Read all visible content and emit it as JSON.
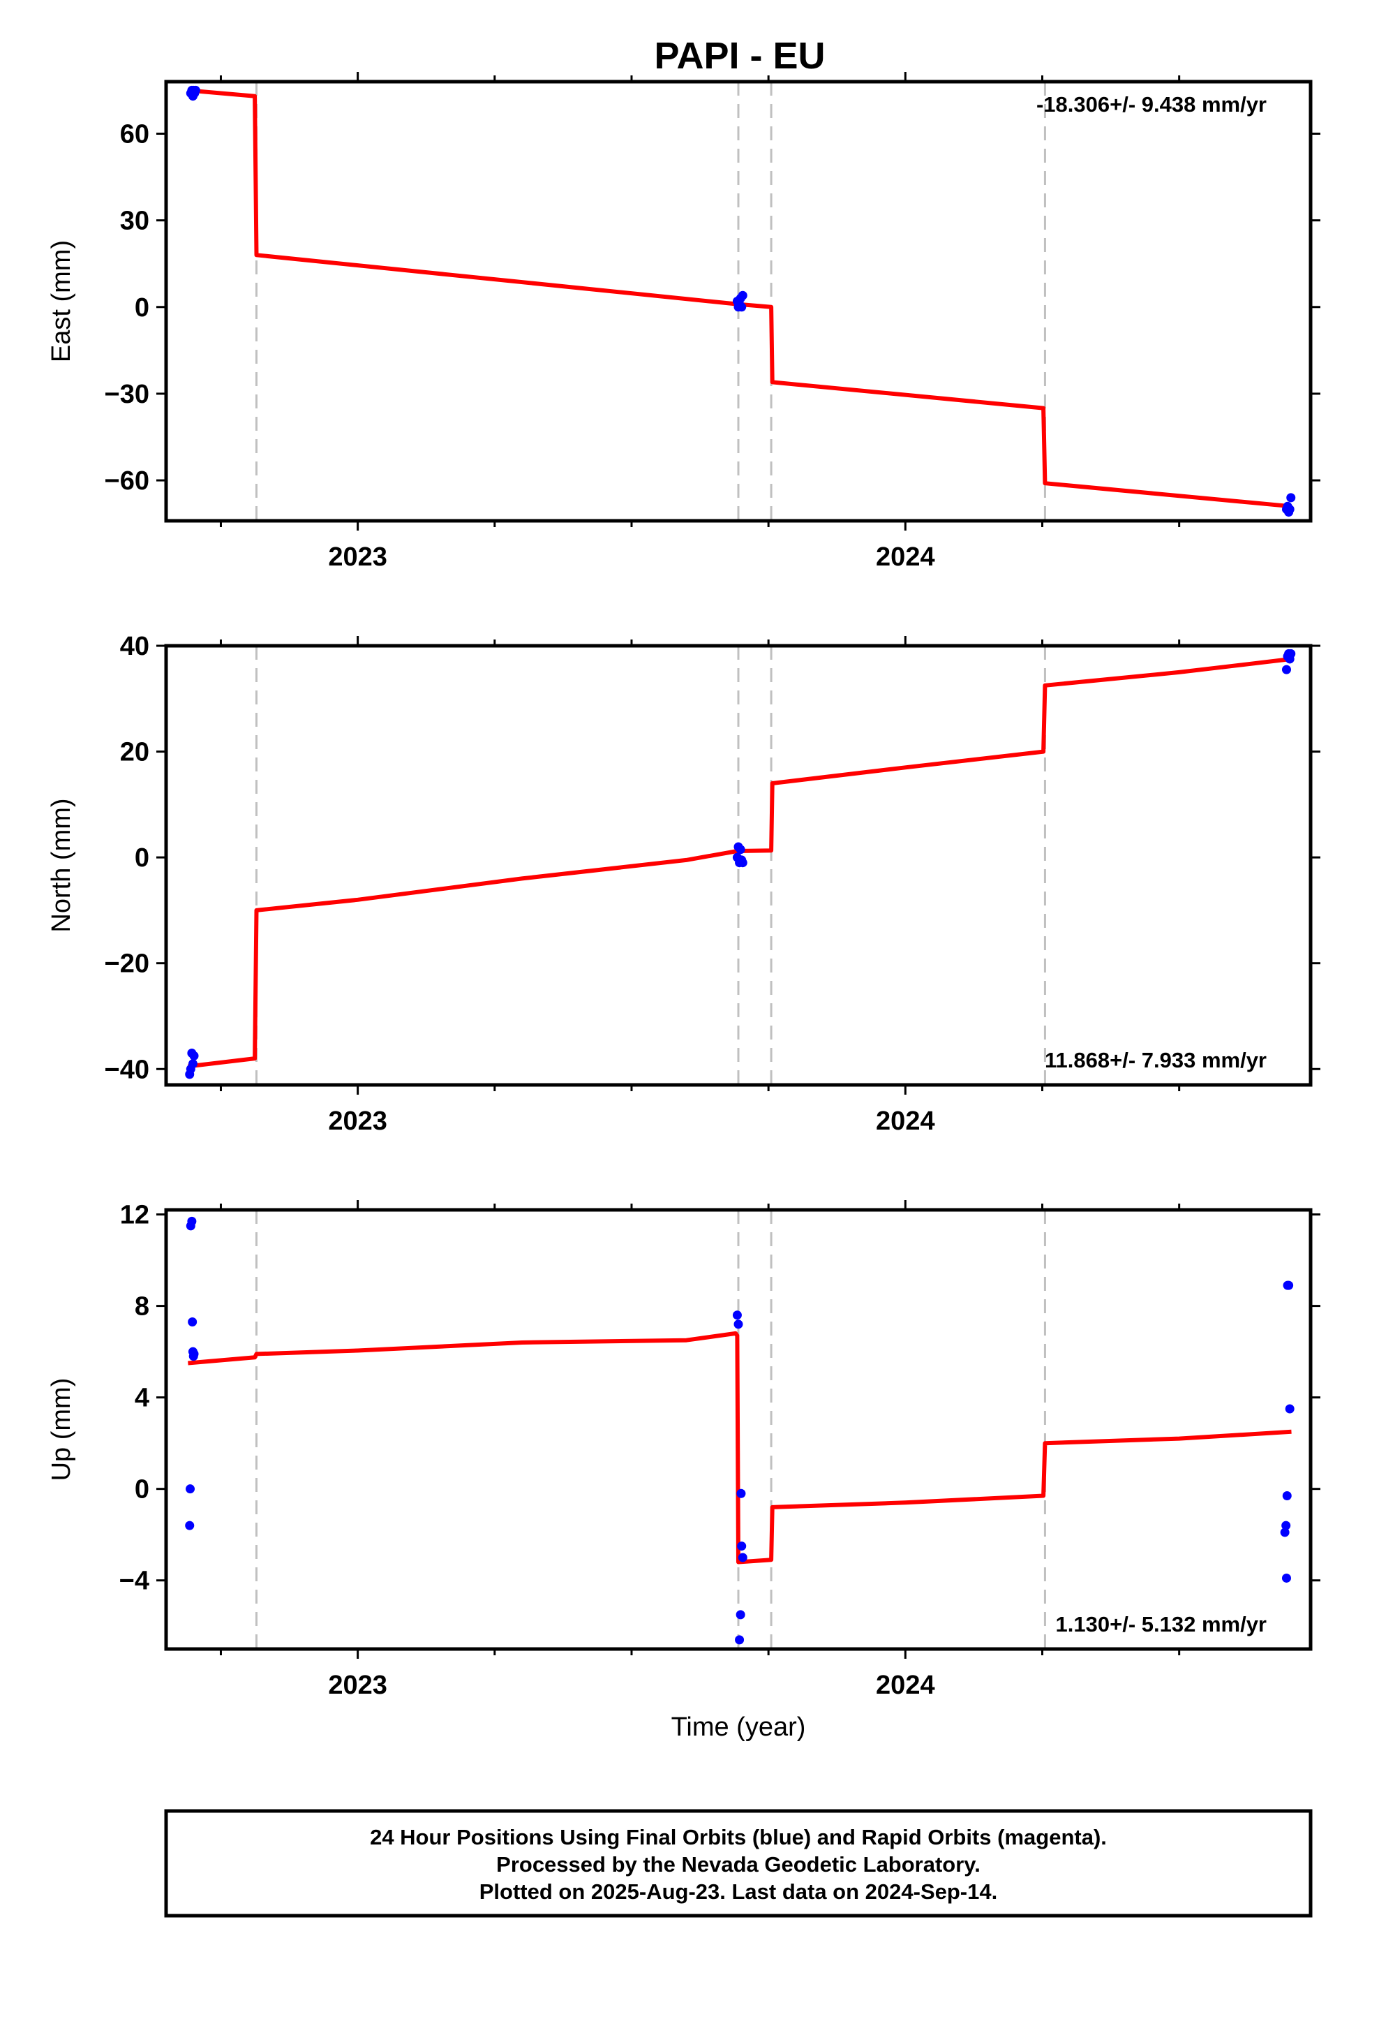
{
  "title": "PAPI - EU",
  "footer": {
    "line1": "24 Hour Positions Using Final Orbits (blue) and Rapid Orbits (magenta).",
    "line2": "Processed by the Nevada Geodetic Laboratory.",
    "line3": "Plotted on 2025-Aug-23. Last data on 2024-Sep-14."
  },
  "colors": {
    "final_orbits": "#0000ff",
    "model": "#ff0000",
    "breaks": "#c0c0c0",
    "frame": "#000000"
  },
  "chart_data": [
    {
      "type": "scatter",
      "component": "east",
      "ylabel": "East (mm)",
      "xlabel": "",
      "xlim": [
        2022.65,
        2024.74
      ],
      "ylim": [
        -74,
        78
      ],
      "xticks": [
        2023,
        2024
      ],
      "xtick_labels": [
        "2023",
        "2024"
      ],
      "yticks": [
        60,
        30,
        0,
        -30,
        -60
      ],
      "ytick_labels": [
        "60",
        "30",
        "0",
        "−30",
        "−60"
      ],
      "rate_text": "-18.306+/- 9.438 mm/yr",
      "rate_position": "top-right",
      "breaks": [
        2022.815,
        2023.695,
        2023.755,
        2024.255
      ],
      "points": {
        "x": [
          2022.695,
          2022.697,
          2022.699,
          2022.7,
          2022.702,
          2022.704,
          2023.693,
          2023.695,
          2023.697,
          2023.699,
          2023.701,
          2023.703,
          2024.696,
          2024.698,
          2024.7,
          2024.702,
          2024.704
        ],
        "y": [
          74,
          75,
          73,
          75,
          74,
          75,
          2,
          0,
          1,
          3,
          0,
          4,
          -70,
          -69,
          -71,
          -70,
          -66
        ]
      },
      "model": {
        "x": [
          2022.69,
          2022.812,
          2022.815,
          2023.693,
          2023.755,
          2023.757,
          2024.252,
          2024.255,
          2024.705
        ],
        "y": [
          75,
          73,
          18,
          1,
          0,
          -26,
          -35,
          -61,
          -69
        ]
      }
    },
    {
      "type": "scatter",
      "component": "north",
      "ylabel": "North (mm)",
      "xlabel": "",
      "xlim": [
        2022.65,
        2024.74
      ],
      "ylim": [
        -43,
        40
      ],
      "xticks": [
        2023,
        2024
      ],
      "xtick_labels": [
        "2023",
        "2024"
      ],
      "yticks": [
        40,
        20,
        0,
        -20,
        -40
      ],
      "ytick_labels": [
        "40",
        "20",
        "0",
        "−20",
        "−40"
      ],
      "rate_text": "11.868+/- 7.933 mm/yr",
      "rate_position": "bottom-right",
      "breaks": [
        2022.815,
        2023.695,
        2023.755,
        2024.255
      ],
      "points": {
        "x": [
          2022.693,
          2022.695,
          2022.697,
          2022.699,
          2022.701,
          2023.693,
          2023.695,
          2023.697,
          2023.699,
          2023.701,
          2023.703,
          2024.696,
          2024.698,
          2024.7,
          2024.702,
          2024.704
        ],
        "y": [
          -41,
          -40,
          -37,
          -39,
          -37.5,
          0,
          2,
          -1,
          1.5,
          -0.5,
          -1,
          35.5,
          38,
          38.5,
          37.5,
          38.5
        ]
      },
      "model": {
        "x": [
          2022.69,
          2022.812,
          2022.815,
          2023.0,
          2023.3,
          2023.6,
          2023.693,
          2023.755,
          2023.757,
          2024.0,
          2024.252,
          2024.255,
          2024.5,
          2024.705
        ],
        "y": [
          -39.5,
          -38,
          -10,
          -8,
          -4,
          -0.5,
          1.2,
          1.3,
          14,
          17,
          20,
          32.5,
          35,
          37.5
        ]
      }
    },
    {
      "type": "scatter",
      "component": "up",
      "ylabel": "Up (mm)",
      "xlabel": "Time (year)",
      "xlim": [
        2022.65,
        2024.74
      ],
      "ylim": [
        -7,
        12.2
      ],
      "xticks": [
        2023,
        2024
      ],
      "xtick_labels": [
        "2023",
        "2024"
      ],
      "yticks": [
        12,
        8,
        4,
        0,
        -4
      ],
      "ytick_labels": [
        "12",
        "8",
        "4",
        "0",
        "−4"
      ],
      "rate_text": "1.130+/- 5.132 mm/yr",
      "rate_position": "bottom-right",
      "breaks": [
        2022.815,
        2023.695,
        2023.755,
        2024.255
      ],
      "points": {
        "x": [
          2022.693,
          2022.694,
          2022.695,
          2022.697,
          2022.698,
          2022.699,
          2022.7,
          2022.701,
          2023.693,
          2023.695,
          2023.697,
          2023.699,
          2023.7,
          2023.701,
          2023.703,
          2024.693,
          2024.695,
          2024.696,
          2024.697,
          2024.698,
          2024.7,
          2024.702
        ],
        "y": [
          -1.6,
          0,
          11.5,
          11.7,
          7.3,
          6,
          5.8,
          5.9,
          7.6,
          7.2,
          -6.6,
          -5.5,
          -0.2,
          -2.5,
          -3,
          -1.9,
          -1.6,
          -3.9,
          -0.3,
          8.9,
          8.9,
          3.5
        ]
      },
      "model": {
        "x": [
          2022.69,
          2022.812,
          2022.815,
          2023.0,
          2023.3,
          2023.6,
          2023.69,
          2023.693,
          2023.695,
          2023.755,
          2023.757,
          2024.0,
          2024.252,
          2024.255,
          2024.5,
          2024.705
        ],
        "y": [
          5.5,
          5.75,
          5.9,
          6.05,
          6.4,
          6.5,
          6.8,
          6.7,
          -3.2,
          -3.1,
          -0.8,
          -0.6,
          -0.3,
          2,
          2.2,
          2.5
        ]
      }
    }
  ]
}
